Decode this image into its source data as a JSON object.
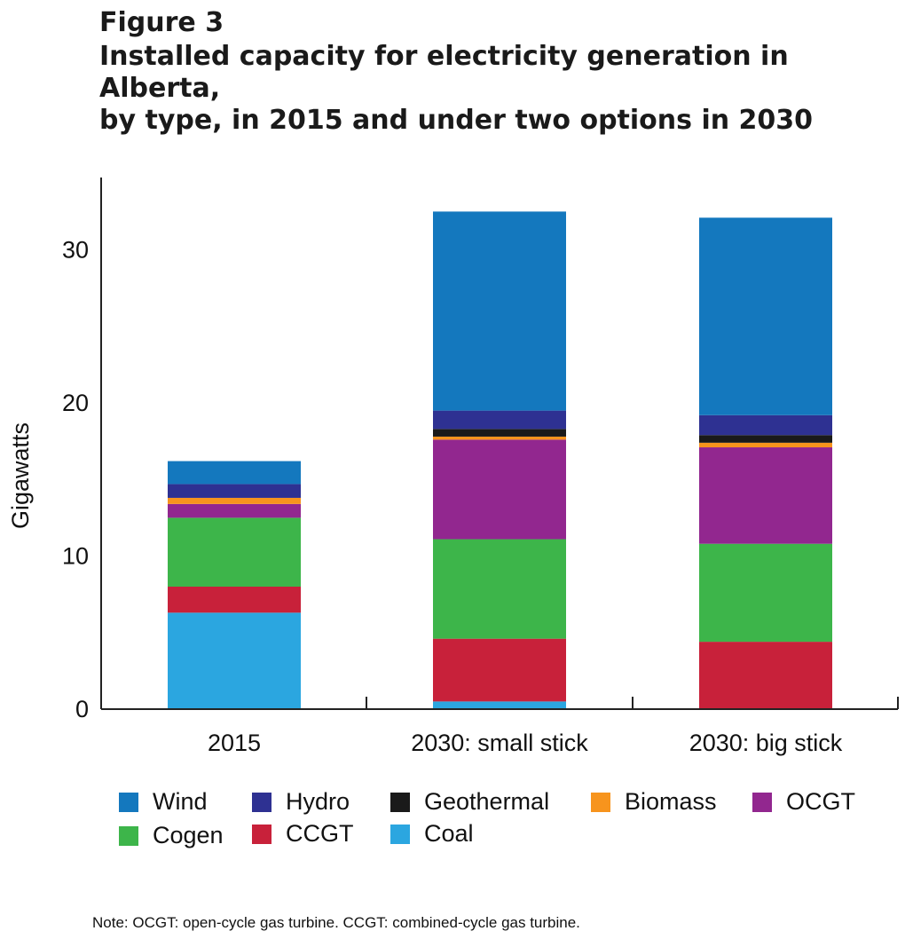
{
  "figure_label": "Figure 3",
  "title_lines": [
    "Installed capacity for electricity generation in Alberta,",
    "by type, in 2015 and under two options in 2030"
  ],
  "note": "Note: OCGT: open-cycle gas turbine. CCGT: combined-cycle gas turbine.",
  "colors": {
    "Coal": "#2ba6e0",
    "CCGT": "#c8213a",
    "Cogen": "#3db54a",
    "OCGT": "#92278f",
    "Biomass": "#f7941d",
    "Geothermal": "#1a1a1a",
    "Hydro": "#2e3192",
    "Wind": "#1478be"
  },
  "legend": [
    {
      "name": "Wind"
    },
    {
      "name": "Hydro"
    },
    {
      "name": "Geothermal"
    },
    {
      "name": "Biomass"
    },
    {
      "name": "OCGT"
    },
    {
      "name": "Cogen"
    },
    {
      "name": "CCGT"
    },
    {
      "name": "Coal"
    }
  ],
  "chart_data": {
    "type": "bar",
    "stacked": true,
    "title": "Installed capacity for electricity generation in Alberta, by type, in 2015 and under two options in 2030",
    "xlabel": "",
    "ylabel": "Gigawatts",
    "ylim": [
      0,
      35
    ],
    "yticks": [
      0,
      10,
      20,
      30
    ],
    "categories": [
      "2015",
      "2030: small stick",
      "2030: big stick"
    ],
    "series": [
      {
        "name": "Coal",
        "values": [
          6.3,
          0.5,
          0
        ]
      },
      {
        "name": "CCGT",
        "values": [
          1.7,
          4.1,
          4.4
        ]
      },
      {
        "name": "Cogen",
        "values": [
          4.5,
          6.5,
          6.4
        ]
      },
      {
        "name": "OCGT",
        "values": [
          0.9,
          6.5,
          6.3
        ]
      },
      {
        "name": "Biomass",
        "values": [
          0.4,
          0.2,
          0.3
        ]
      },
      {
        "name": "Geothermal",
        "values": [
          0,
          0.5,
          0.5
        ]
      },
      {
        "name": "Hydro",
        "values": [
          0.9,
          1.2,
          1.3
        ]
      },
      {
        "name": "Wind",
        "values": [
          1.5,
          13.0,
          12.9
        ]
      }
    ]
  }
}
